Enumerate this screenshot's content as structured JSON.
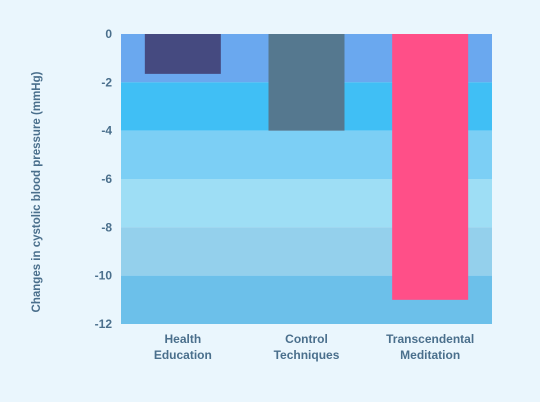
{
  "chart_data": {
    "type": "bar",
    "title": "",
    "xlabel": "",
    "ylabel": "Changes in cystolic blood pressure (mmHg)",
    "ylim": [
      -12,
      0
    ],
    "yticks": [
      "0",
      "-2",
      "-4",
      "-6",
      "-8",
      "-10",
      "-12"
    ],
    "categories": [
      [
        "Health",
        "Education"
      ],
      [
        "Control",
        "Techniques"
      ],
      [
        "Transcendental",
        "Meditation"
      ]
    ],
    "values": [
      -1.65,
      -4.0,
      -11.0
    ],
    "bar_colors": [
      "#454a80",
      "#55788f",
      "#ff4f88"
    ],
    "bands": [
      {
        "from": 0,
        "to": -2,
        "color": "#6aa8ef"
      },
      {
        "from": -2,
        "to": -4,
        "color": "#40bff5"
      },
      {
        "from": -4,
        "to": -6,
        "color": "#7ccff5"
      },
      {
        "from": -6,
        "to": -8,
        "color": "#9edef5"
      },
      {
        "from": -8,
        "to": -10,
        "color": "#94d0ec"
      },
      {
        "from": -10,
        "to": -12,
        "color": "#6cc0ea"
      }
    ],
    "grid": false,
    "legend": "none"
  }
}
